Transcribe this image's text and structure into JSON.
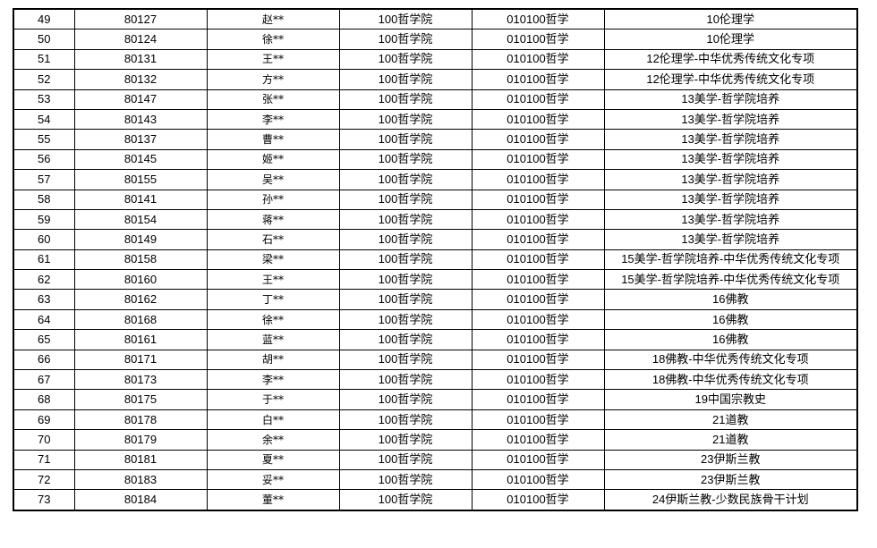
{
  "rows": [
    [
      "49",
      "80127",
      "赵**",
      "100哲学院",
      "010100哲学",
      "10伦理学"
    ],
    [
      "50",
      "80124",
      "徐**",
      "100哲学院",
      "010100哲学",
      "10伦理学"
    ],
    [
      "51",
      "80131",
      "王**",
      "100哲学院",
      "010100哲学",
      "12伦理学-中华优秀传统文化专项"
    ],
    [
      "52",
      "80132",
      "方**",
      "100哲学院",
      "010100哲学",
      "12伦理学-中华优秀传统文化专项"
    ],
    [
      "53",
      "80147",
      "张**",
      "100哲学院",
      "010100哲学",
      "13美学-哲学院培养"
    ],
    [
      "54",
      "80143",
      "李**",
      "100哲学院",
      "010100哲学",
      "13美学-哲学院培养"
    ],
    [
      "55",
      "80137",
      "曹**",
      "100哲学院",
      "010100哲学",
      "13美学-哲学院培养"
    ],
    [
      "56",
      "80145",
      "姬**",
      "100哲学院",
      "010100哲学",
      "13美学-哲学院培养"
    ],
    [
      "57",
      "80155",
      "吴**",
      "100哲学院",
      "010100哲学",
      "13美学-哲学院培养"
    ],
    [
      "58",
      "80141",
      "孙**",
      "100哲学院",
      "010100哲学",
      "13美学-哲学院培养"
    ],
    [
      "59",
      "80154",
      "蒋**",
      "100哲学院",
      "010100哲学",
      "13美学-哲学院培养"
    ],
    [
      "60",
      "80149",
      "石**",
      "100哲学院",
      "010100哲学",
      "13美学-哲学院培养"
    ],
    [
      "61",
      "80158",
      "梁**",
      "100哲学院",
      "010100哲学",
      "15美学-哲学院培养-中华优秀传统文化专项"
    ],
    [
      "62",
      "80160",
      "王**",
      "100哲学院",
      "010100哲学",
      "15美学-哲学院培养-中华优秀传统文化专项"
    ],
    [
      "63",
      "80162",
      "丁**",
      "100哲学院",
      "010100哲学",
      "16佛教"
    ],
    [
      "64",
      "80168",
      "徐**",
      "100哲学院",
      "010100哲学",
      "16佛教"
    ],
    [
      "65",
      "80161",
      "蓝**",
      "100哲学院",
      "010100哲学",
      "16佛教"
    ],
    [
      "66",
      "80171",
      "胡**",
      "100哲学院",
      "010100哲学",
      "18佛教-中华优秀传统文化专项"
    ],
    [
      "67",
      "80173",
      "李**",
      "100哲学院",
      "010100哲学",
      "18佛教-中华优秀传统文化专项"
    ],
    [
      "68",
      "80175",
      "于**",
      "100哲学院",
      "010100哲学",
      "19中国宗教史"
    ],
    [
      "69",
      "80178",
      "白**",
      "100哲学院",
      "010100哲学",
      "21道教"
    ],
    [
      "70",
      "80179",
      "余**",
      "100哲学院",
      "010100哲学",
      "21道教"
    ],
    [
      "71",
      "80181",
      "夏**",
      "100哲学院",
      "010100哲学",
      "23伊斯兰教"
    ],
    [
      "72",
      "80183",
      "妥**",
      "100哲学院",
      "010100哲学",
      "23伊斯兰教"
    ],
    [
      "73",
      "80184",
      "董**",
      "100哲学院",
      "010100哲学",
      "24伊斯兰教-少数民族骨干计划"
    ]
  ]
}
